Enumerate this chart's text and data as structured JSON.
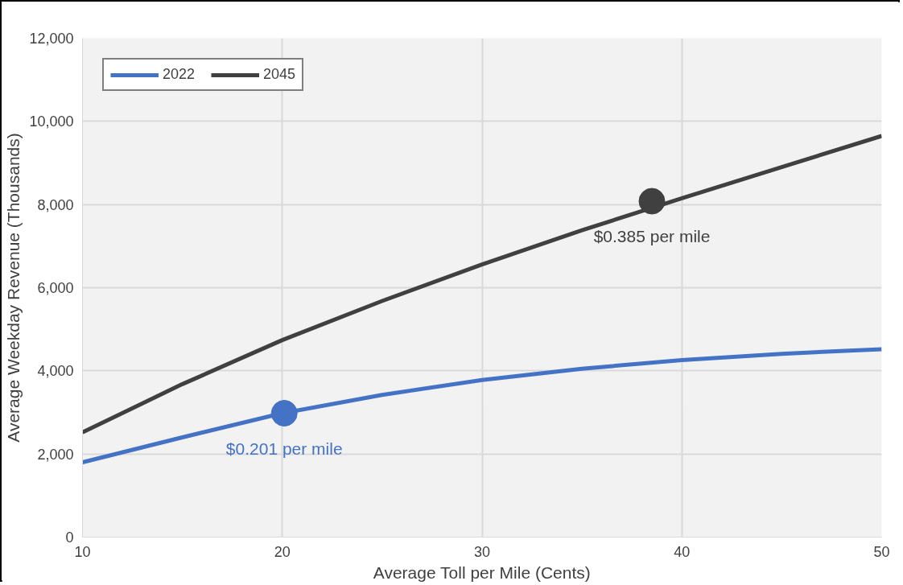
{
  "chart_data": {
    "type": "line",
    "xlabel": "Average Toll per Mile (Cents)",
    "ylabel": "Average Weekday Revenue (Thousands)",
    "x": [
      10,
      15,
      20,
      25,
      30,
      35,
      40,
      45,
      50
    ],
    "series": [
      {
        "name": "2022",
        "color": "#4472c4",
        "values": [
          1800,
          2400,
          2980,
          3420,
          3780,
          4050,
          4260,
          4410,
          4520
        ]
      },
      {
        "name": "2045",
        "color": "#404040",
        "values": [
          2520,
          3680,
          4740,
          5680,
          6560,
          7380,
          8150,
          8900,
          9650
        ]
      },
      {
        "type": "scatter",
        "marker": "circle",
        "color": "#4472c4",
        "x": [
          20.1
        ],
        "values": [
          2980
        ]
      },
      {
        "type": "scatter",
        "marker": "circle",
        "color": "#404040",
        "x": [
          38.5
        ],
        "values": [
          8080
        ]
      }
    ],
    "annotations": [
      {
        "text": "$0.201 per mile",
        "x": 20.1,
        "y": 2980
      },
      {
        "text": "$0.385 per mile",
        "x": 38.5,
        "y": 8080
      }
    ],
    "xlim": [
      10,
      50
    ],
    "xticks": [
      10,
      20,
      30,
      40,
      50
    ],
    "ylim": [
      0,
      12000
    ],
    "yticks": [
      {
        "value": 0,
        "label": "0"
      },
      {
        "value": 2000,
        "label": "2,000"
      },
      {
        "value": 4000,
        "label": "4,000"
      },
      {
        "value": 6000,
        "label": "6,000"
      },
      {
        "value": 8000,
        "label": "8,000"
      },
      {
        "value": 10000,
        "label": "10,000"
      },
      {
        "value": 12000,
        "label": "12,000"
      }
    ],
    "grid": true,
    "legend": "top left"
  }
}
